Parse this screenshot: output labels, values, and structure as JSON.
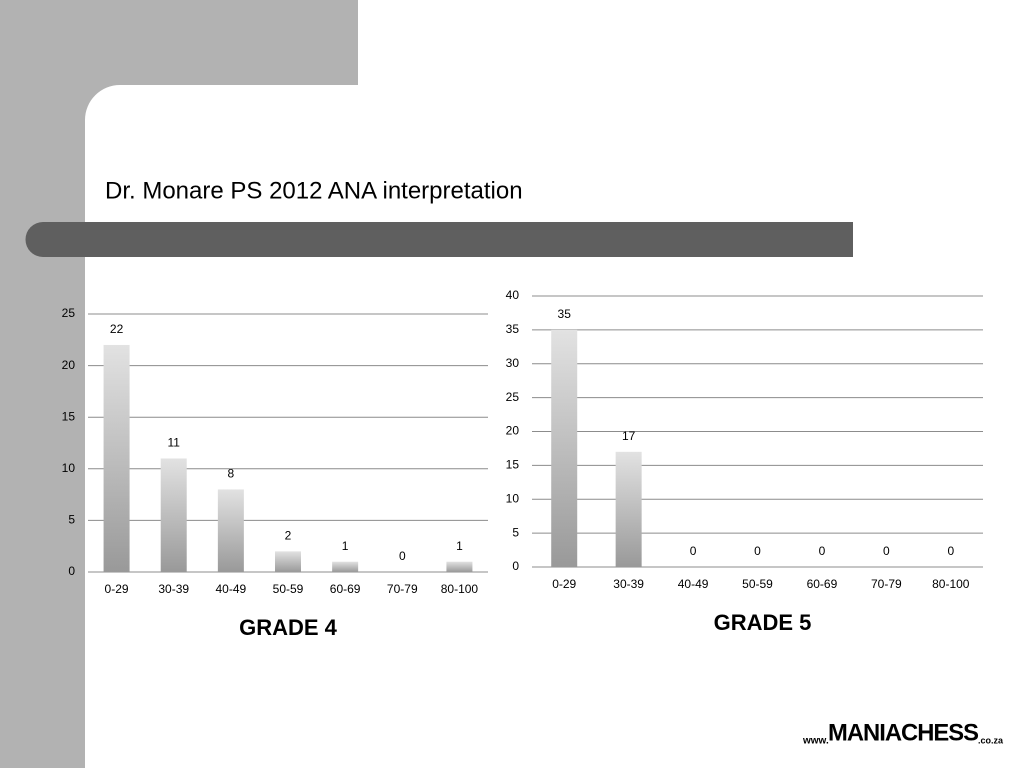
{
  "title": "Dr. Monare PS 2012 ANA interpretation",
  "chart_data": [
    {
      "type": "bar",
      "caption": "GRADE 4",
      "categories": [
        "0-29",
        "30-39",
        "40-49",
        "50-59",
        "60-69",
        "70-79",
        "80-100"
      ],
      "values": [
        22,
        11,
        8,
        2,
        1,
        0,
        1
      ],
      "color": "#999999",
      "ylim": [
        0,
        25
      ],
      "yticks": [
        0,
        5,
        10,
        15,
        20,
        25
      ],
      "grid": true,
      "data_labels": true
    },
    {
      "type": "bar",
      "caption": "GRADE 5",
      "categories": [
        "0-29",
        "30-39",
        "40-49",
        "50-59",
        "60-69",
        "70-79",
        "80-100"
      ],
      "values": [
        35,
        17,
        0,
        0,
        0,
        0,
        0
      ],
      "color": "#999999",
      "ylim": [
        0,
        40
      ],
      "yticks": [
        0,
        5,
        10,
        15,
        20,
        25,
        30,
        35,
        40
      ],
      "grid": true,
      "data_labels": true
    }
  ],
  "logo": {
    "prefix": "www.",
    "name": "MANIACHESS",
    "suffix": ".co.za"
  }
}
